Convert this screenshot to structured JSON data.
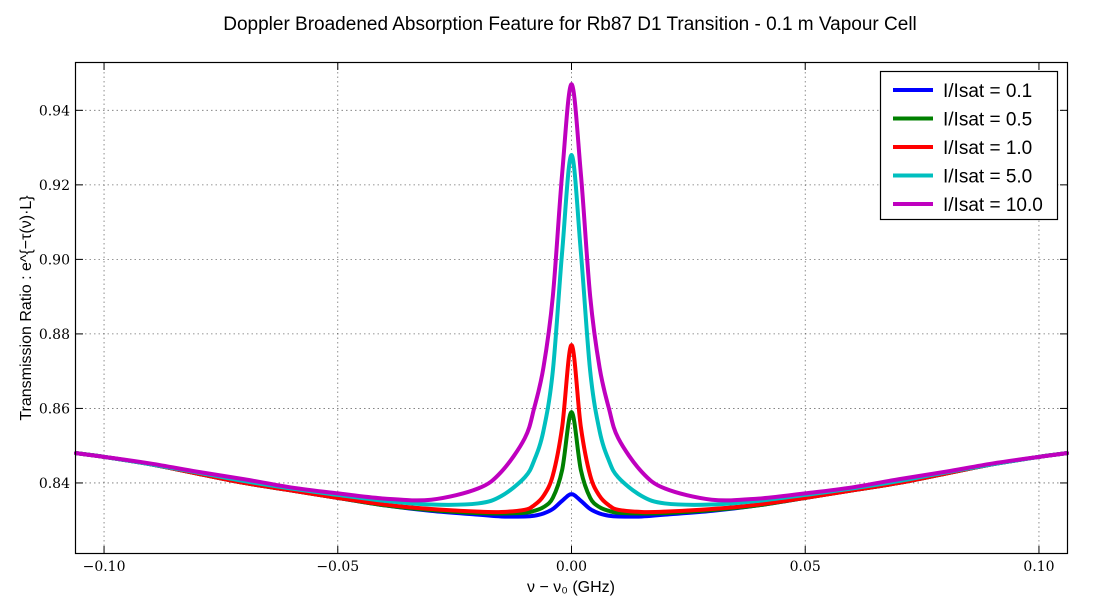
{
  "chart_data": {
    "type": "line",
    "title": "Doppler Broadened Absorption Feature for Rb87 D1 Transition - 0.1 m Vapour Cell",
    "xlabel": "ν − ν₀ (GHz)",
    "ylabel": "Transmission Ratio : e^{−τ(ν)·L}",
    "xlim": [
      -0.106,
      0.106
    ],
    "ylim": [
      0.8212,
      0.9527
    ],
    "xticks": [
      -0.1,
      -0.05,
      0.0,
      0.05,
      0.1
    ],
    "xtick_labels": [
      "−0.10",
      "−0.05",
      "0.00",
      "0.05",
      "0.10"
    ],
    "yticks": [
      0.84,
      0.86,
      0.88,
      0.9,
      0.92,
      0.94
    ],
    "ytick_labels": [
      "0.84",
      "0.86",
      "0.88",
      "0.90",
      "0.92",
      "0.94"
    ],
    "grid": true,
    "legend_position": "top-right",
    "x": [
      -0.106,
      -0.1,
      -0.09,
      -0.08,
      -0.07,
      -0.06,
      -0.05,
      -0.04,
      -0.03,
      -0.02,
      -0.015,
      -0.01,
      -0.008,
      -0.006,
      -0.004,
      -0.002,
      0.0,
      0.002,
      0.004,
      0.006,
      0.008,
      0.01,
      0.015,
      0.02,
      0.03,
      0.04,
      0.05,
      0.06,
      0.07,
      0.08,
      0.09,
      0.1,
      0.106
    ],
    "series": [
      {
        "name": "I/Isat = 0.1",
        "color": "#0000ff",
        "values": [
          0.848,
          0.847,
          0.845,
          0.8425,
          0.84,
          0.838,
          0.836,
          0.834,
          0.8325,
          0.8315,
          0.831,
          0.831,
          0.8312,
          0.8318,
          0.833,
          0.8352,
          0.837,
          0.8352,
          0.833,
          0.8318,
          0.8312,
          0.831,
          0.831,
          0.8315,
          0.8325,
          0.834,
          0.836,
          0.838,
          0.84,
          0.8425,
          0.845,
          0.847,
          0.848
        ]
      },
      {
        "name": "I/Isat = 0.5",
        "color": "#008000",
        "values": [
          0.848,
          0.847,
          0.845,
          0.8425,
          0.84,
          0.838,
          0.836,
          0.834,
          0.8327,
          0.8319,
          0.8318,
          0.832,
          0.8325,
          0.8335,
          0.836,
          0.8435,
          0.859,
          0.8435,
          0.836,
          0.8335,
          0.8325,
          0.832,
          0.8318,
          0.8319,
          0.8327,
          0.834,
          0.836,
          0.838,
          0.84,
          0.8425,
          0.845,
          0.847,
          0.848
        ]
      },
      {
        "name": "I/Isat = 1.0",
        "color": "#ff0000",
        "values": [
          0.848,
          0.847,
          0.845,
          0.8425,
          0.84,
          0.838,
          0.836,
          0.8342,
          0.833,
          0.8323,
          0.8322,
          0.8328,
          0.834,
          0.8365,
          0.842,
          0.855,
          0.877,
          0.855,
          0.842,
          0.8365,
          0.834,
          0.8328,
          0.8322,
          0.8323,
          0.833,
          0.8342,
          0.836,
          0.838,
          0.84,
          0.8425,
          0.845,
          0.847,
          0.848
        ]
      },
      {
        "name": "I/Isat = 5.0",
        "color": "#00bfbf",
        "values": [
          0.848,
          0.847,
          0.845,
          0.8428,
          0.8405,
          0.8385,
          0.8368,
          0.8352,
          0.8342,
          0.8345,
          0.8365,
          0.8415,
          0.846,
          0.854,
          0.87,
          0.902,
          0.928,
          0.902,
          0.87,
          0.854,
          0.846,
          0.8415,
          0.8365,
          0.8345,
          0.8342,
          0.8352,
          0.8368,
          0.8385,
          0.8405,
          0.8428,
          0.845,
          0.847,
          0.848
        ]
      },
      {
        "name": "I/Isat = 10.0",
        "color": "#bf00bf",
        "values": [
          0.848,
          0.847,
          0.8452,
          0.843,
          0.841,
          0.8388,
          0.8372,
          0.8358,
          0.8355,
          0.8385,
          0.843,
          0.852,
          0.86,
          0.871,
          0.89,
          0.923,
          0.947,
          0.923,
          0.89,
          0.871,
          0.86,
          0.852,
          0.843,
          0.8385,
          0.8355,
          0.8358,
          0.8372,
          0.8388,
          0.841,
          0.843,
          0.8452,
          0.847,
          0.848
        ]
      }
    ]
  }
}
